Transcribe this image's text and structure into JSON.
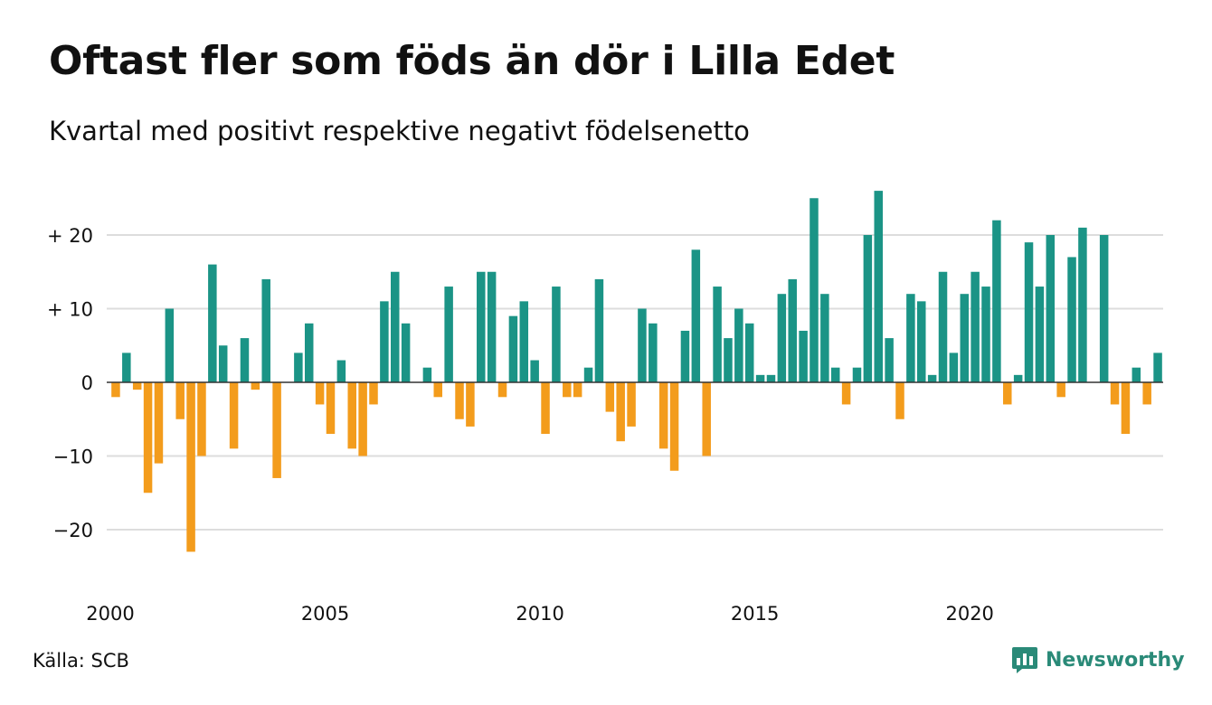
{
  "title": "Oftast fler som föds än dör i Lilla Edet",
  "subtitle": "Kvartal med positivt respektive negativt födelsenetto",
  "source": "Källa: SCB",
  "brand": {
    "name": "Newsworthy",
    "icon": "newsworthy-logo-icon"
  },
  "colors": {
    "positive": "#1b9486",
    "negative": "#f39c1c",
    "grid": "#dddddd",
    "zero": "#333333"
  },
  "chart_data": {
    "type": "bar",
    "x_start": 2000,
    "x_step": 0.25,
    "values": [
      -2,
      4,
      -1,
      -15,
      -11,
      10,
      -5,
      -23,
      -10,
      16,
      5,
      -9,
      6,
      -1,
      14,
      -13,
      0,
      4,
      8,
      -3,
      -7,
      3,
      -9,
      -10,
      -3,
      11,
      15,
      8,
      0,
      2,
      -2,
      13,
      -5,
      -6,
      15,
      15,
      -2,
      9,
      11,
      3,
      -7,
      13,
      -2,
      -2,
      2,
      14,
      -4,
      -8,
      -6,
      10,
      8,
      -9,
      -12,
      7,
      18,
      -10,
      13,
      6,
      10,
      8,
      1,
      1,
      12,
      14,
      7,
      25,
      12,
      2,
      -3,
      2,
      20,
      26,
      6,
      -5,
      12,
      11,
      1,
      15,
      4,
      12,
      15,
      13,
      22,
      -3,
      1,
      19,
      13,
      20,
      -2,
      17,
      21,
      0,
      20,
      -3,
      -7,
      2,
      -3,
      4
    ],
    "ylim": [
      -25,
      27
    ],
    "y_ticks": [
      {
        "value": 20,
        "label": "+ 20"
      },
      {
        "value": 10,
        "label": "+ 10"
      },
      {
        "value": 0,
        "label": "0"
      },
      {
        "value": -10,
        "label": "−10"
      },
      {
        "value": -20,
        "label": "−20"
      }
    ],
    "x_ticks": [
      {
        "value": 2000,
        "label": "2000"
      },
      {
        "value": 2005,
        "label": "2005"
      },
      {
        "value": 2010,
        "label": "2010"
      },
      {
        "value": 2015,
        "label": "2015"
      },
      {
        "value": 2020,
        "label": "2020"
      }
    ],
    "grid": true,
    "legend": "none"
  }
}
